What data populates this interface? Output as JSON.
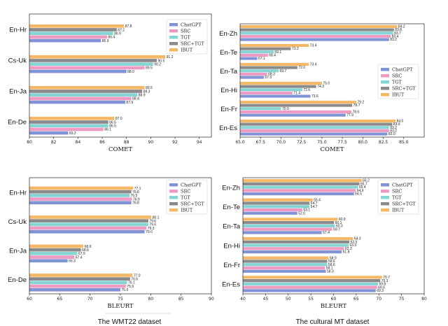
{
  "colors": {
    "ChatGPT": "#8093d4",
    "SRC": "#ef9ac3",
    "TGT": "#86d4d4",
    "SRC+TGT": "#8a8a8a",
    "IBUT": "#f5b867"
  },
  "captions": {
    "left": "The WMT22 dataset",
    "right": "The cultural MT dataset"
  },
  "chart_data": [
    {
      "type": "bar",
      "orientation": "horizontal",
      "dataset": "WMT22",
      "xlabel": "COMET",
      "xlim": [
        80,
        95
      ],
      "xticks": [
        80,
        82,
        84,
        86,
        88,
        90,
        92,
        94
      ],
      "legend": "top-right",
      "categories": [
        "En-De",
        "En-Ja",
        "Cs-Uk",
        "En-Hr"
      ],
      "series": [
        {
          "name": "ChatGPT",
          "values": [
            83.2,
            87.9,
            88.0,
            85.9
          ]
        },
        {
          "name": "SRC",
          "values": [
            86.1,
            88.4,
            89.5,
            86.4
          ]
        },
        {
          "name": "TGT",
          "values": [
            86.5,
            88.9,
            90.2,
            86.9
          ]
        },
        {
          "name": "SRC+TGT",
          "values": [
            86.5,
            89.3,
            90.5,
            87.2
          ]
        },
        {
          "name": "IBUT",
          "values": [
            87.0,
            89.5,
            91.2,
            87.8
          ]
        }
      ]
    },
    {
      "type": "bar",
      "orientation": "horizontal",
      "dataset": "cultural MT",
      "xlabel": "COMET",
      "xlim": [
        65,
        87.5
      ],
      "xticks": [
        65.0,
        67.5,
        70.0,
        72.5,
        75.0,
        77.5,
        80.0,
        82.5,
        85.0
      ],
      "legend": "right",
      "categories": [
        "En-Es",
        "En-Fr",
        "En-Hi",
        "En-Ta",
        "En-Te",
        "En-Zh"
      ],
      "series": [
        {
          "name": "ChatGPT",
          "values": [
            83.0,
            77.9,
            73.6,
            67.9,
            67.1,
            83.2
          ]
        },
        {
          "name": "SRC",
          "values": [
            83.2,
            78.6,
            71.4,
            68.3,
            68.4,
            83.4
          ]
        },
        {
          "name": "TGT",
          "values": [
            83.2,
            70.0,
            72.6,
            69.7,
            69.1,
            83.7
          ]
        },
        {
          "name": "SRC+TGT",
          "values": [
            83.6,
            78.7,
            74.3,
            72.0,
            71.2,
            83.8
          ]
        },
        {
          "name": "IBUT",
          "values": [
            84.0,
            79.2,
            75.0,
            73.4,
            73.4,
            84.2
          ]
        }
      ]
    },
    {
      "type": "bar",
      "orientation": "horizontal",
      "dataset": "WMT22",
      "xlabel": "BLEURT",
      "xlim": [
        60,
        90
      ],
      "xticks": [
        60,
        65,
        70,
        75,
        80,
        85,
        90
      ],
      "legend": "top-right",
      "categories": [
        "En-De",
        "En-Ja",
        "Cs-Uk",
        "En-Hr"
      ],
      "series": [
        {
          "name": "ChatGPT",
          "values": [
            75.0,
            66.3,
            79.0,
            76.8
          ]
        },
        {
          "name": "SRC",
          "values": [
            75.9,
            67.4,
            79.3,
            76.9
          ]
        },
        {
          "name": "TGT",
          "values": [
            76.1,
            67.9,
            79.6,
            76.5
          ]
        },
        {
          "name": "SRC+TGT",
          "values": [
            76.6,
            68.5,
            79.6,
            76.8
          ]
        },
        {
          "name": "IBUT",
          "values": [
            77.0,
            68.9,
            80.1,
            77.1
          ]
        }
      ]
    },
    {
      "type": "bar",
      "orientation": "horizontal",
      "dataset": "cultural MT",
      "xlabel": "BLEURT",
      "xlim": [
        40,
        80
      ],
      "xticks": [
        40,
        45,
        50,
        55,
        60,
        65,
        70,
        75,
        80
      ],
      "legend": "top-right",
      "categories": [
        "En-Es",
        "En-Fr",
        "En-Hi",
        "En-Ta",
        "En-Te",
        "En-Zh"
      ],
      "series": [
        {
          "name": "ChatGPT",
          "values": [
            69.3,
            58.3,
            61.8,
            57.4,
            52.0,
            64.5
          ]
        },
        {
          "name": "SRC",
          "values": [
            69.6,
            58.1,
            62.3,
            59.7,
            53.1,
            64.9
          ]
        },
        {
          "name": "TGT",
          "values": [
            69.8,
            58.6,
            63.3,
            60.3,
            54.7,
            65.4
          ]
        },
        {
          "name": "SRC+TGT",
          "values": [
            70.3,
            58.6,
            63.5,
            60.1,
            54.7,
            65.7
          ]
        },
        {
          "name": "IBUT",
          "values": [
            70.7,
            58.9,
            64.3,
            60.9,
            55.4,
            66.2
          ]
        }
      ]
    }
  ]
}
